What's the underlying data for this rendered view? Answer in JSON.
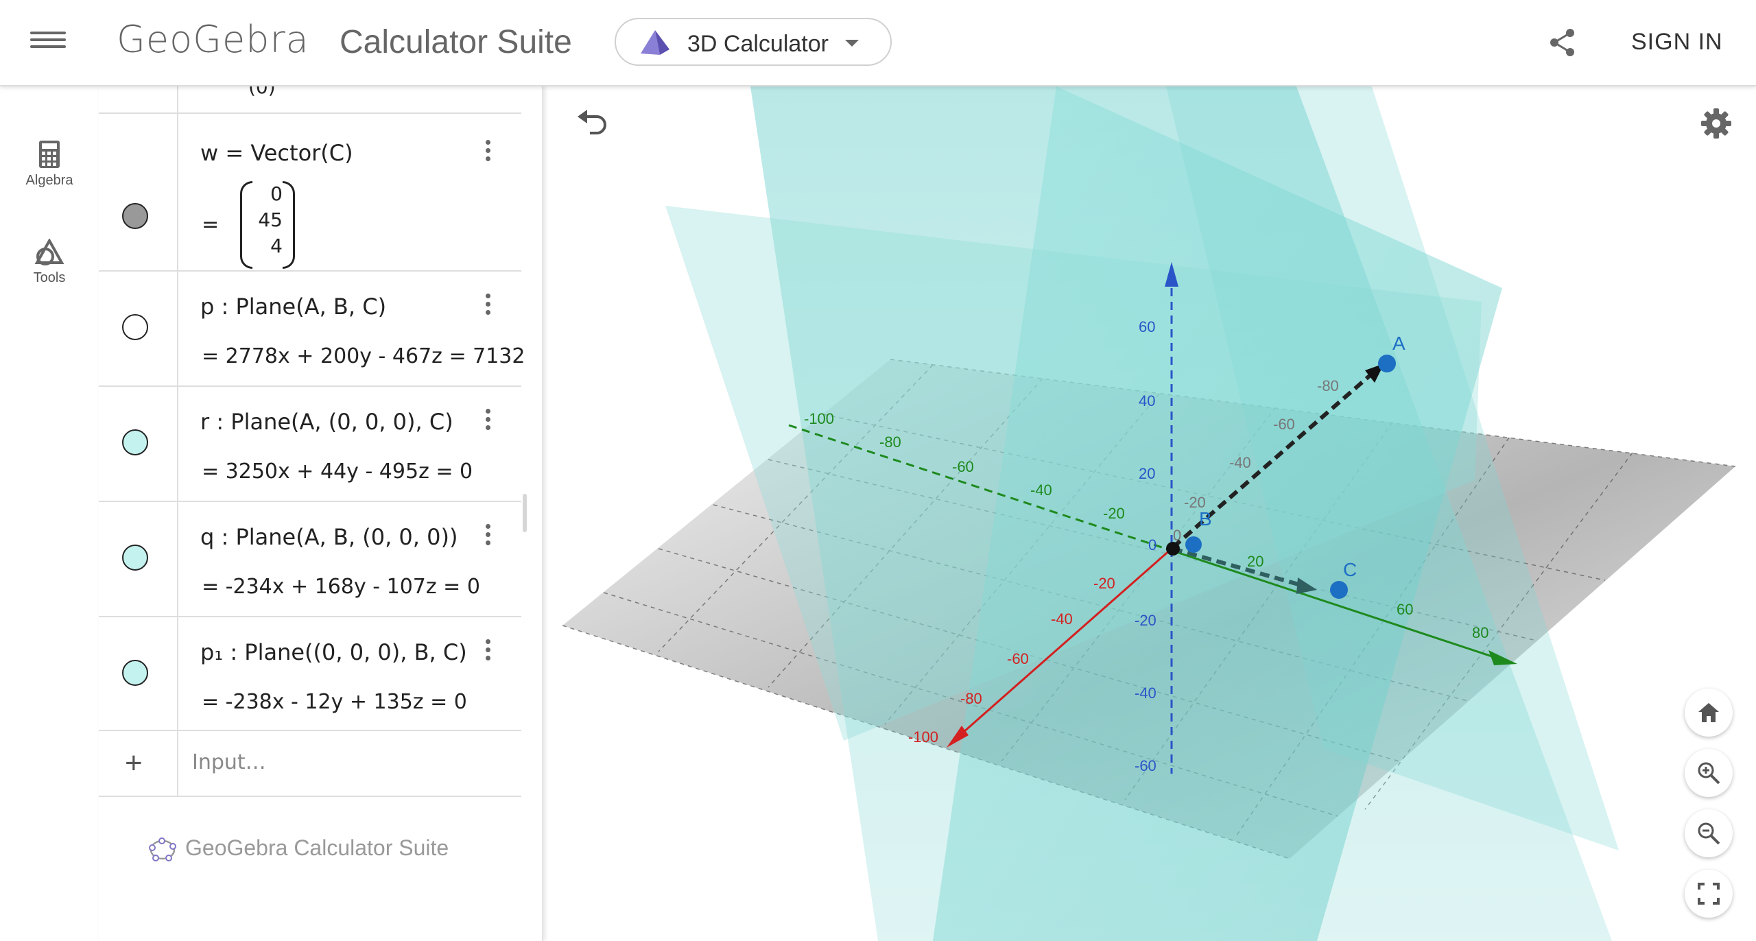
{
  "header": {
    "logo_text": "GeoGebra",
    "app_title": "Calculator Suite",
    "calculator_select": "3D Calculator",
    "sign_in": "SIGN IN"
  },
  "sidebar": {
    "items": [
      {
        "label": "Algebra",
        "icon": "calculator-icon"
      },
      {
        "label": "Tools",
        "icon": "tools-icon"
      }
    ]
  },
  "algebra": {
    "partial_top": "(0)",
    "rows": [
      {
        "definition": "w = Vector(C)",
        "value_prefix": "=",
        "vector": [
          "0",
          "45",
          "4"
        ],
        "dot_color": "#999999"
      },
      {
        "definition": "p : Plane(A, B, C)",
        "value": "= 2778x + 200y - 467z = 7132",
        "dot_color": "#ffffff"
      },
      {
        "definition": "r : Plane(A, (0, 0, 0), C)",
        "value": "= 3250x + 44y - 495z = 0",
        "dot_color": "#c4f2ef"
      },
      {
        "definition": "q : Plane(A, B, (0, 0, 0))",
        "value": "= -234x + 168y - 107z = 0",
        "dot_color": "#c4f2ef"
      },
      {
        "definition": "p₁ : Plane((0, 0, 0), B, C)",
        "value": "= -238x - 12y + 135z = 0",
        "dot_color": "#c4f2ef"
      }
    ],
    "input_placeholder": "Input…",
    "footer": "GeoGebra Calculator Suite"
  },
  "graphics": {
    "axis_colors": {
      "x": "#d32020",
      "y": "#1e8a1e",
      "z": "#2a55c8"
    },
    "x_ticks": [
      "-20",
      "-40",
      "-60",
      "-80",
      "-100"
    ],
    "y_ticks": [
      "-100",
      "-80",
      "-60",
      "-40",
      "-20",
      "20",
      "60",
      "80"
    ],
    "z_ticks": [
      "60",
      "40",
      "20",
      "0",
      "-20",
      "-40",
      "-60"
    ],
    "points": {
      "A": "A",
      "B": "B",
      "C": "C"
    },
    "ray_ticks": [
      "-80",
      "-60",
      "-40",
      "-20",
      "0"
    ]
  }
}
